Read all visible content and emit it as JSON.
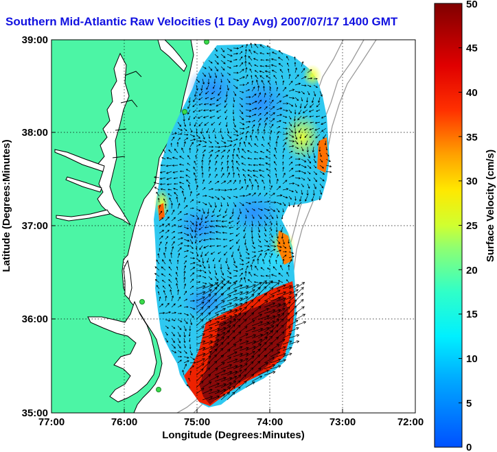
{
  "title": "Southern Mid-Atlantic Raw Velocities (1 Day Avg) 2007/07/17 1400 GMT",
  "map": {
    "x_axis": {
      "label": "Longitude (Degrees:Minutes)",
      "ticks": [
        "77:00",
        "76:00",
        "75:00",
        "74:00",
        "73:00",
        "72:00"
      ]
    },
    "y_axis": {
      "label": "Latitude (Degrees:Minutes)",
      "ticks": [
        "39:00",
        "38:00",
        "37:00",
        "36:00",
        "35:00"
      ]
    },
    "grid": "dotted",
    "colors": {
      "land": "#4cf5a5",
      "water": "#ffffff",
      "coastline": "#000000",
      "bathymetry": "#9a9a9a",
      "station": "#3adb4a",
      "title": "#1010e0"
    }
  },
  "colorbar": {
    "label": "Surface Velocity (cm/s)",
    "ticks": [
      "50",
      "45",
      "40",
      "35",
      "30",
      "25",
      "20",
      "15",
      "10",
      "5",
      "0"
    ],
    "min": 0,
    "max": 50,
    "colormap": "jet"
  }
}
